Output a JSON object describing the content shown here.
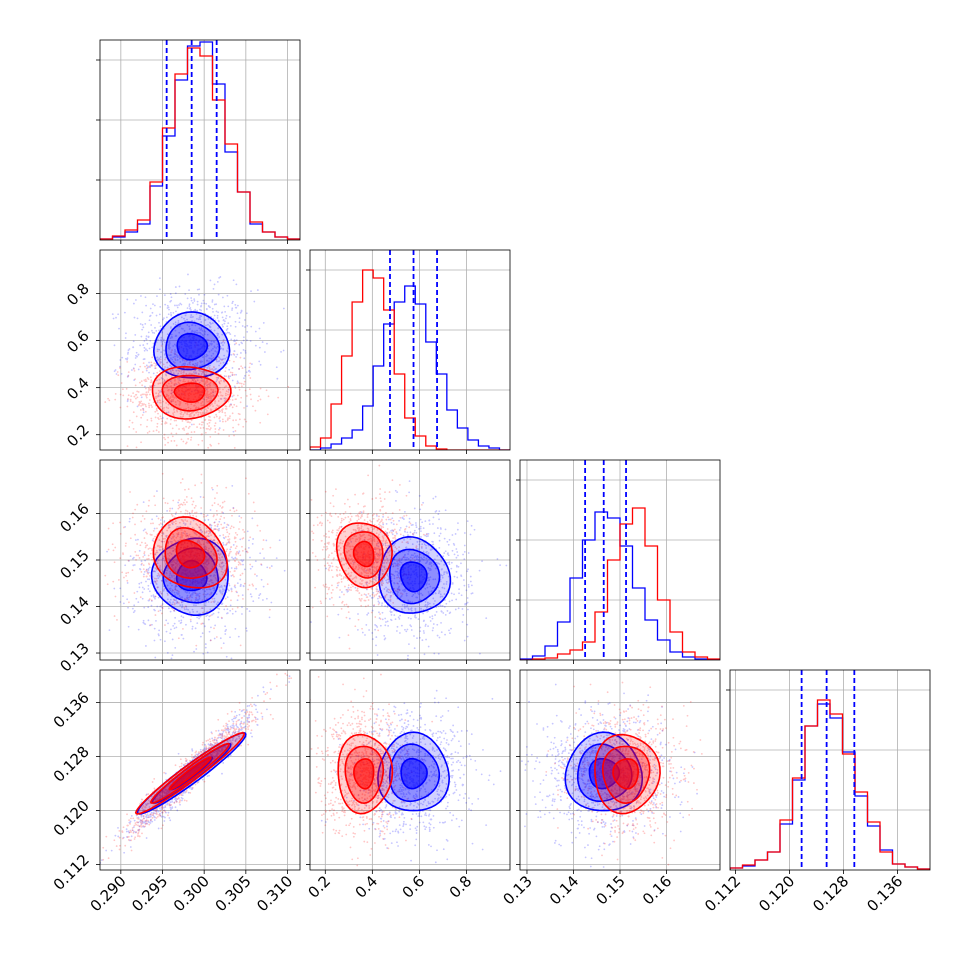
{
  "chart_data": {
    "type": "corner",
    "colors": {
      "series_a": "#0000ff",
      "series_b": "#ff0000"
    },
    "grid": true,
    "params": [
      {
        "range": [
          0.2875,
          0.3115
        ],
        "ticks": [
          0.29,
          0.295,
          0.3,
          0.305,
          0.31
        ],
        "tick_labels": [
          "0.290",
          "0.295",
          "0.300",
          "0.305",
          "0.310"
        ]
      },
      {
        "range": [
          0.135,
          0.985
        ],
        "ticks": [
          0.2,
          0.4,
          0.6,
          0.8
        ],
        "tick_labels": [
          "0.2",
          "0.4",
          "0.6",
          "0.8"
        ]
      },
      {
        "range": [
          0.1285,
          0.1715
        ],
        "ticks": [
          0.13,
          0.14,
          0.15,
          0.16
        ],
        "tick_labels": [
          "0.13",
          "0.14",
          "0.15",
          "0.16"
        ]
      },
      {
        "range": [
          0.1112,
          0.1408
        ],
        "ticks": [
          0.112,
          0.12,
          0.128,
          0.136
        ],
        "tick_labels": [
          "0.112",
          "0.120",
          "0.128",
          "0.136"
        ]
      }
    ],
    "quantiles": [
      [
        0.2955,
        0.2985,
        0.3015
      ],
      [
        0.475,
        0.575,
        0.675
      ],
      [
        0.1425,
        0.1465,
        0.1513
      ],
      [
        0.1218,
        0.1255,
        0.1296
      ]
    ],
    "histograms": [
      {
        "a": [
          0.005,
          0.015,
          0.04,
          0.08,
          0.27,
          0.52,
          0.8,
          0.97,
          0.99,
          0.78,
          0.44,
          0.24,
          0.08,
          0.04,
          0.015,
          0.005
        ],
        "b": [
          0.005,
          0.02,
          0.05,
          0.1,
          0.29,
          0.56,
          0.83,
          0.96,
          0.92,
          0.7,
          0.48,
          0.24,
          0.09,
          0.04,
          0.015,
          0.005
        ]
      },
      {
        "a": [
          0.0,
          0.01,
          0.03,
          0.06,
          0.1,
          0.22,
          0.42,
          0.63,
          0.74,
          0.82,
          0.73,
          0.54,
          0.38,
          0.2,
          0.11,
          0.05,
          0.02,
          0.01,
          0.0
        ],
        "b": [
          0.015,
          0.06,
          0.23,
          0.47,
          0.74,
          0.9,
          0.86,
          0.7,
          0.38,
          0.16,
          0.07,
          0.02,
          0.005,
          0.0,
          0.0,
          0.0,
          0.0,
          0.0,
          0.0
        ]
      },
      {
        "a": [
          0.005,
          0.02,
          0.07,
          0.19,
          0.41,
          0.6,
          0.74,
          0.71,
          0.57,
          0.36,
          0.2,
          0.1,
          0.04,
          0.015,
          0.005,
          0.0
        ],
        "b": [
          0.0,
          0.005,
          0.01,
          0.03,
          0.05,
          0.09,
          0.24,
          0.5,
          0.68,
          0.76,
          0.57,
          0.3,
          0.14,
          0.04,
          0.015,
          0.005
        ]
      },
      {
        "a": [
          0.01,
          0.02,
          0.05,
          0.09,
          0.23,
          0.45,
          0.72,
          0.83,
          0.76,
          0.59,
          0.37,
          0.22,
          0.1,
          0.03,
          0.015,
          0.005
        ],
        "b": [
          0.01,
          0.025,
          0.05,
          0.09,
          0.25,
          0.46,
          0.72,
          0.85,
          0.78,
          0.58,
          0.39,
          0.24,
          0.09,
          0.03,
          0.015,
          0.005
        ]
      }
    ],
    "posteriors": {
      "a": {
        "mean": [
          0.2985,
          0.575,
          0.1465,
          0.1255
        ],
        "std": [
          0.0032,
          0.105,
          0.0058,
          0.0039
        ]
      },
      "b": {
        "mean": [
          0.2983,
          0.365,
          0.1513,
          0.1255
        ],
        "std": [
          0.0032,
          0.078,
          0.005,
          0.0039
        ]
      }
    },
    "contour_levels": [
      0.7,
      0.9,
      0.98
    ],
    "contours": [
      {
        "row": 1,
        "col": 0,
        "a": [
          [
            0.2985,
            0.575,
            0.0045,
            0.14,
            0
          ],
          [
            0.2985,
            0.575,
            0.0032,
            0.1,
            0
          ],
          [
            0.2985,
            0.575,
            0.0018,
            0.055,
            0
          ]
        ],
        "b": [
          [
            0.2983,
            0.38,
            0.0047,
            0.11,
            0
          ],
          [
            0.2983,
            0.38,
            0.0033,
            0.075,
            0
          ],
          [
            0.2983,
            0.38,
            0.0018,
            0.04,
            0
          ]
        ]
      },
      {
        "row": 2,
        "col": 0,
        "a": [
          [
            0.2985,
            0.1465,
            0.0046,
            0.0082,
            35
          ],
          [
            0.2985,
            0.1465,
            0.0033,
            0.0058,
            35
          ],
          [
            0.2985,
            0.1465,
            0.0018,
            0.0032,
            35
          ]
        ],
        "b": [
          [
            0.2983,
            0.1513,
            0.0047,
            0.007,
            40
          ],
          [
            0.2983,
            0.1513,
            0.0033,
            0.005,
            40
          ],
          [
            0.2983,
            0.1513,
            0.0018,
            0.0027,
            40
          ]
        ]
      },
      {
        "row": 2,
        "col": 1,
        "a": [
          [
            0.575,
            0.1465,
            0.15,
            0.0082,
            -15
          ],
          [
            0.575,
            0.1465,
            0.105,
            0.0058,
            -15
          ],
          [
            0.575,
            0.1465,
            0.055,
            0.0032,
            -15
          ]
        ],
        "b": [
          [
            0.365,
            0.1513,
            0.115,
            0.007,
            -15
          ],
          [
            0.365,
            0.1513,
            0.08,
            0.005,
            -15
          ],
          [
            0.365,
            0.1513,
            0.042,
            0.0027,
            -15
          ]
        ]
      },
      {
        "row": 3,
        "col": 0,
        "a": [
          [
            0.2985,
            0.1255,
            0.0065,
            0.006,
            0.96
          ],
          [
            0.2985,
            0.1255,
            0.0047,
            0.0044,
            0.96
          ],
          [
            0.2985,
            0.1255,
            0.0025,
            0.0024,
            0.96
          ]
        ],
        "b": [
          [
            0.2983,
            0.1255,
            0.0065,
            0.006,
            0.97
          ],
          [
            0.2983,
            0.1255,
            0.0047,
            0.0044,
            0.97
          ],
          [
            0.2983,
            0.1255,
            0.0025,
            0.0024,
            0.97
          ]
        ]
      },
      {
        "row": 3,
        "col": 1,
        "a": [
          [
            0.575,
            0.1255,
            0.15,
            0.0058,
            0
          ],
          [
            0.575,
            0.1255,
            0.105,
            0.0042,
            0
          ],
          [
            0.575,
            0.1255,
            0.055,
            0.0022,
            0
          ]
        ],
        "b": [
          [
            0.365,
            0.1255,
            0.115,
            0.0058,
            0
          ],
          [
            0.365,
            0.1255,
            0.08,
            0.0042,
            0
          ],
          [
            0.365,
            0.1255,
            0.042,
            0.0022,
            0
          ]
        ]
      },
      {
        "row": 3,
        "col": 2,
        "a": [
          [
            0.1465,
            0.1255,
            0.0082,
            0.0058,
            0
          ],
          [
            0.1465,
            0.1255,
            0.0058,
            0.0042,
            0
          ],
          [
            0.1465,
            0.1255,
            0.0032,
            0.0022,
            0
          ]
        ],
        "b": [
          [
            0.1513,
            0.1255,
            0.007,
            0.0058,
            0
          ],
          [
            0.1513,
            0.1255,
            0.005,
            0.0042,
            0
          ],
          [
            0.1513,
            0.1255,
            0.0027,
            0.0022,
            0
          ]
        ]
      }
    ]
  }
}
